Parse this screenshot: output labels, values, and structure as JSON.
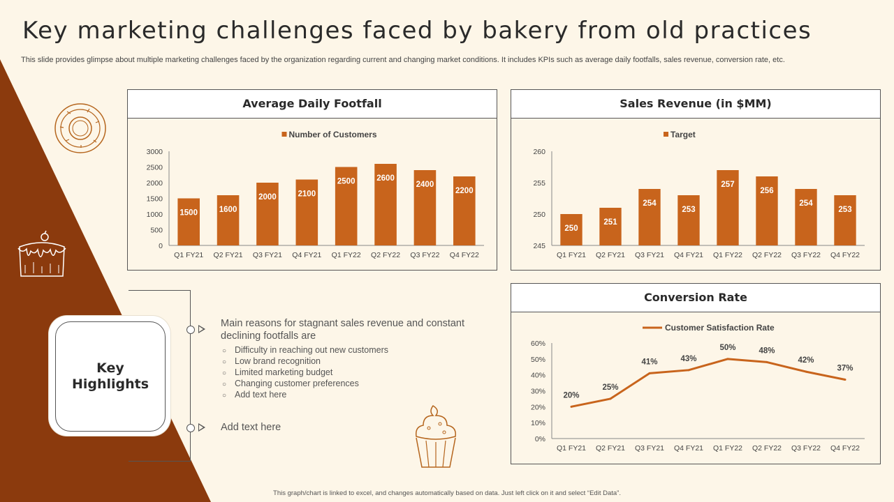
{
  "title": "Key marketing challenges faced by bakery from old practices",
  "subtitle": "This slide provides glimpse about multiple marketing challenges faced by the organization regarding current and changing market conditions. It includes KPIs such as average daily footfalls, sales revenue, conversion rate, etc.",
  "colors": {
    "accent": "#c8641c",
    "dark_brown": "#8b3a0d",
    "background": "#fdf6e8"
  },
  "key_highlights": {
    "label_line1": "Key",
    "label_line2": "Highlights",
    "main_text": "Main reasons for stagnant sales revenue and constant declining footfalls are",
    "items": [
      "Difficulty in reaching out new customers",
      "Low brand recognition",
      "Limited marketing budget",
      "Changing customer preferences",
      "Add text here"
    ],
    "bullet": "○",
    "add_text": "Add text here"
  },
  "footer": "This graph/chart is linked to excel, and changes automatically based on data.  Just left click on it and select “Edit Data”.",
  "icons": [
    "donut-icon",
    "cake-icon",
    "cupcake-icon"
  ],
  "chart_data": [
    {
      "id": "footfall",
      "type": "bar",
      "title": "Average Daily Footfall",
      "legend": "Number of Customers",
      "categories": [
        "Q1 FY21",
        "Q2 FY21",
        "Q3 FY21",
        "Q4 FY21",
        "Q1 FY22",
        "Q2 FY22",
        "Q3 FY22",
        "Q4 FY22"
      ],
      "values": [
        1500,
        1600,
        2000,
        2100,
        2500,
        2600,
        2400,
        2200
      ],
      "ylim": [
        0,
        3000
      ],
      "yticks": [
        0,
        500,
        1000,
        1500,
        2000,
        2500,
        3000
      ]
    },
    {
      "id": "revenue",
      "type": "bar",
      "title": "Sales Revenue (in $MM)",
      "legend": "Target",
      "categories": [
        "Q1 FY21",
        "Q2 FY21",
        "Q3 FY21",
        "Q4 FY21",
        "Q1 FY22",
        "Q2 FY22",
        "Q3 FY22",
        "Q4 FY22"
      ],
      "values": [
        250,
        251,
        254,
        253,
        257,
        256,
        254,
        253
      ],
      "ylim": [
        245,
        260
      ],
      "yticks": [
        245,
        250,
        255,
        260
      ]
    },
    {
      "id": "conversion",
      "type": "line",
      "title": "Conversion Rate",
      "legend": "Customer Satisfaction Rate",
      "categories": [
        "Q1 FY21",
        "Q2 FY21",
        "Q3 FY21",
        "Q4 FY21",
        "Q1 FY22",
        "Q2 FY22",
        "Q3 FY22",
        "Q4 FY22"
      ],
      "values": [
        20,
        25,
        41,
        43,
        50,
        48,
        42,
        37
      ],
      "value_suffix": "%",
      "ylim": [
        0,
        60
      ],
      "yticks": [
        0,
        10,
        20,
        30,
        40,
        50,
        60
      ]
    }
  ]
}
